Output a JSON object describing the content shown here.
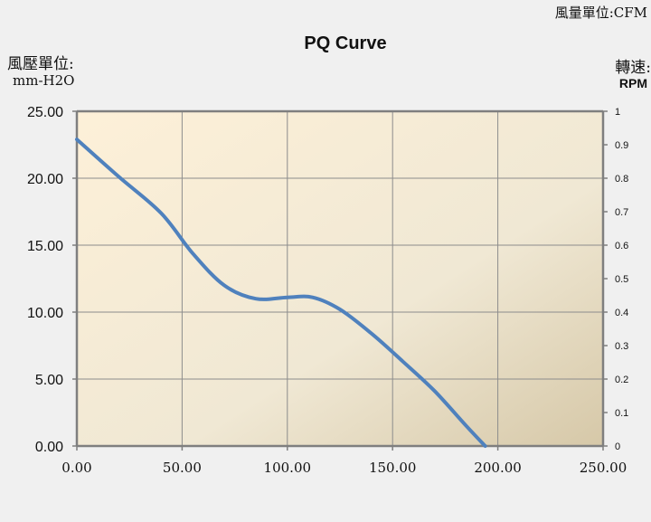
{
  "labels": {
    "flow_unit": "風量單位:CFM",
    "pressure_unit_line1": "風壓單位:",
    "pressure_unit_line2": "mm-H2O",
    "speed_unit_line1": "轉速:",
    "speed_unit_line2": "RPM"
  },
  "chart_data": {
    "type": "line",
    "title": "PQ Curve",
    "grid": true,
    "x": {
      "min": 0,
      "max": 250,
      "ticks": [
        0,
        50,
        100,
        150,
        200,
        250
      ],
      "tick_labels": [
        "0.00",
        "50.00",
        "100.00",
        "150.00",
        "200.00",
        "250.00"
      ]
    },
    "y_left": {
      "min": 0,
      "max": 25,
      "ticks": [
        0,
        5,
        10,
        15,
        20,
        25
      ],
      "tick_labels": [
        "0.00",
        "5.00",
        "10.00",
        "15.00",
        "20.00",
        "25.00"
      ]
    },
    "y_right": {
      "min": 0,
      "max": 1,
      "ticks": [
        0,
        0.1,
        0.2,
        0.3,
        0.4,
        0.5,
        0.6,
        0.7,
        0.8,
        0.9,
        1
      ],
      "tick_labels": [
        "0",
        "0.1",
        "0.2",
        "0.3",
        "0.4",
        "0.5",
        "0.6",
        "0.7",
        "0.8",
        "0.9",
        "1"
      ]
    },
    "series": [
      {
        "axis": "left",
        "color": "#4f81bd",
        "points": [
          [
            0,
            22.9
          ],
          [
            20,
            20.1
          ],
          [
            40,
            17.4
          ],
          [
            55,
            14.4
          ],
          [
            70,
            12.0
          ],
          [
            85,
            11.0
          ],
          [
            100,
            11.1
          ],
          [
            112,
            11.1
          ],
          [
            125,
            10.2
          ],
          [
            140,
            8.4
          ],
          [
            155,
            6.3
          ],
          [
            170,
            4.1
          ],
          [
            185,
            1.5
          ],
          [
            194,
            0
          ]
        ]
      }
    ],
    "colors": {
      "bg_light": "#fdf0d8",
      "bg_dark": "#d6c8a8",
      "grid": "#8c8c8c",
      "axis": "#7f7f7f"
    }
  }
}
